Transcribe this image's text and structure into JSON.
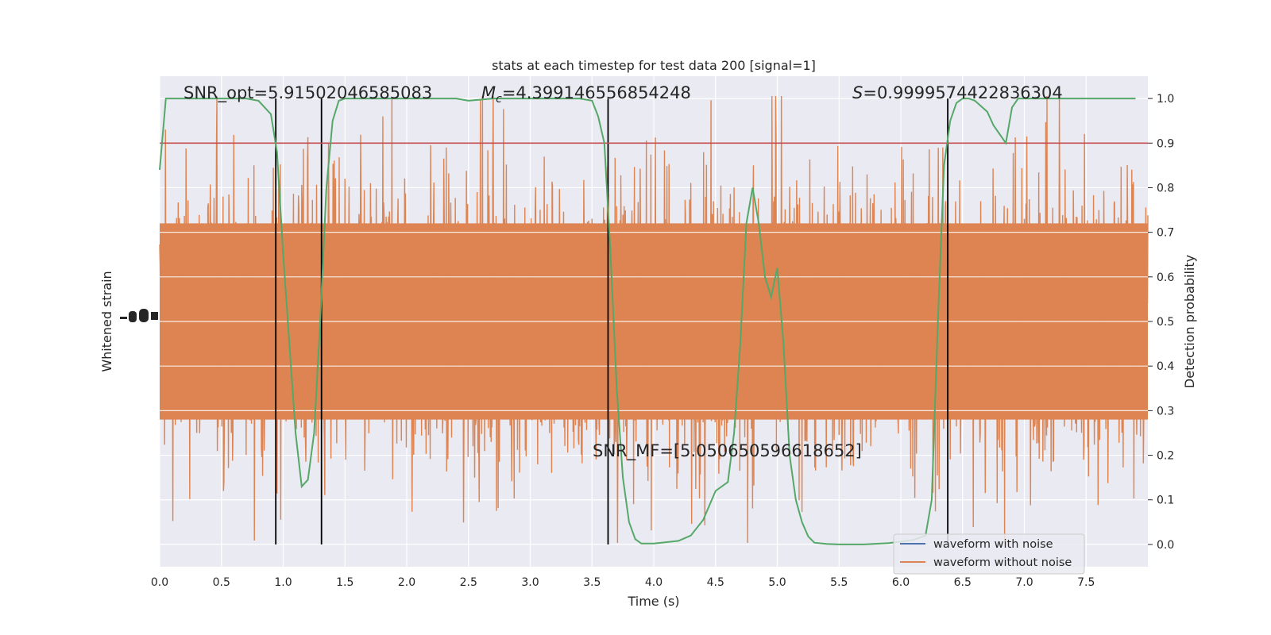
{
  "chart_data": {
    "type": "line",
    "title": "stats at each timestep for test data 200 [signal=1]",
    "xlabel": "Time (s)",
    "ylabel_left": "Whitened strain",
    "ylabel_right": "Detection probability",
    "xlim": [
      0,
      8
    ],
    "ylim_right": [
      -0.05,
      1.05
    ],
    "x_ticks": [
      "0.0",
      "0.5",
      "1.0",
      "1.5",
      "2.0",
      "2.5",
      "3.0",
      "3.5",
      "4.0",
      "4.5",
      "5.0",
      "5.5",
      "6.0",
      "6.5",
      "7.0",
      "7.5"
    ],
    "y_ticks_right": [
      "0.0",
      "0.1",
      "0.2",
      "0.3",
      "0.4",
      "0.5",
      "0.6",
      "0.7",
      "0.8",
      "0.9",
      "1.0"
    ],
    "grid": true,
    "annotations": {
      "snr_opt": "SNR_opt=5.91502046585083",
      "mc_symbol": "M",
      "mc_sub": "c",
      "mc_value": "=4.399146556854248",
      "s_symbol": "S",
      "s_value": "=0.9999574422836304",
      "snr_mf": "SNR_MF=[5.050650596618652]"
    },
    "threshold": {
      "value": 0.9,
      "color": "#c44e52"
    },
    "vertical_lines_x": [
      0.94,
      1.31,
      3.63,
      6.38
    ],
    "series": [
      {
        "name": "waveform with noise",
        "color": "#4c72b0"
      },
      {
        "name": "waveform without noise",
        "color": "#dd8452"
      }
    ],
    "detection_probability": {
      "color": "#55a868",
      "x": [
        0,
        0.05,
        0.1,
        0.2,
        0.3,
        0.4,
        0.5,
        0.6,
        0.7,
        0.8,
        0.9,
        0.95,
        1.0,
        1.05,
        1.1,
        1.15,
        1.2,
        1.25,
        1.3,
        1.35,
        1.4,
        1.45,
        1.5,
        1.6,
        1.8,
        2.0,
        2.2,
        2.4,
        2.5,
        2.7,
        2.9,
        3.0,
        3.2,
        3.4,
        3.5,
        3.55,
        3.6,
        3.65,
        3.7,
        3.75,
        3.8,
        3.85,
        3.9,
        3.95,
        4.0,
        4.1,
        4.2,
        4.3,
        4.4,
        4.5,
        4.6,
        4.65,
        4.7,
        4.75,
        4.8,
        4.85,
        4.9,
        4.95,
        5.0,
        5.05,
        5.1,
        5.15,
        5.2,
        5.25,
        5.3,
        5.4,
        5.5,
        5.7,
        5.9,
        6.1,
        6.2,
        6.25,
        6.3,
        6.35,
        6.4,
        6.45,
        6.5,
        6.55,
        6.6,
        6.7,
        6.75,
        6.8,
        6.85,
        6.9,
        6.95,
        7.0,
        7.05,
        7.1,
        7.2,
        7.3,
        7.5,
        7.7,
        7.9
      ],
      "y": [
        0.84,
        1.0,
        1.0,
        1.0,
        1.0,
        1.0,
        1.0,
        1.0,
        1.0,
        0.995,
        0.965,
        0.88,
        0.65,
        0.45,
        0.25,
        0.13,
        0.145,
        0.25,
        0.5,
        0.8,
        0.95,
        0.995,
        1.0,
        1.0,
        1.0,
        1.0,
        1.0,
        1.0,
        0.995,
        1.0,
        1.0,
        1.0,
        1.0,
        1.0,
        0.995,
        0.96,
        0.9,
        0.65,
        0.35,
        0.15,
        0.05,
        0.012,
        0.002,
        0.002,
        0.002,
        0.005,
        0.008,
        0.02,
        0.055,
        0.12,
        0.14,
        0.25,
        0.45,
        0.72,
        0.8,
        0.72,
        0.6,
        0.555,
        0.62,
        0.45,
        0.2,
        0.1,
        0.05,
        0.018,
        0.004,
        0.001,
        0.0,
        0.0,
        0.003,
        0.01,
        0.02,
        0.1,
        0.5,
        0.85,
        0.95,
        0.99,
        1.0,
        1.0,
        0.995,
        0.97,
        0.94,
        0.92,
        0.9,
        0.98,
        1.0,
        1.0,
        1.0,
        1.0,
        1.0,
        1.0,
        1.0,
        1.0,
        1.0
      ]
    }
  }
}
